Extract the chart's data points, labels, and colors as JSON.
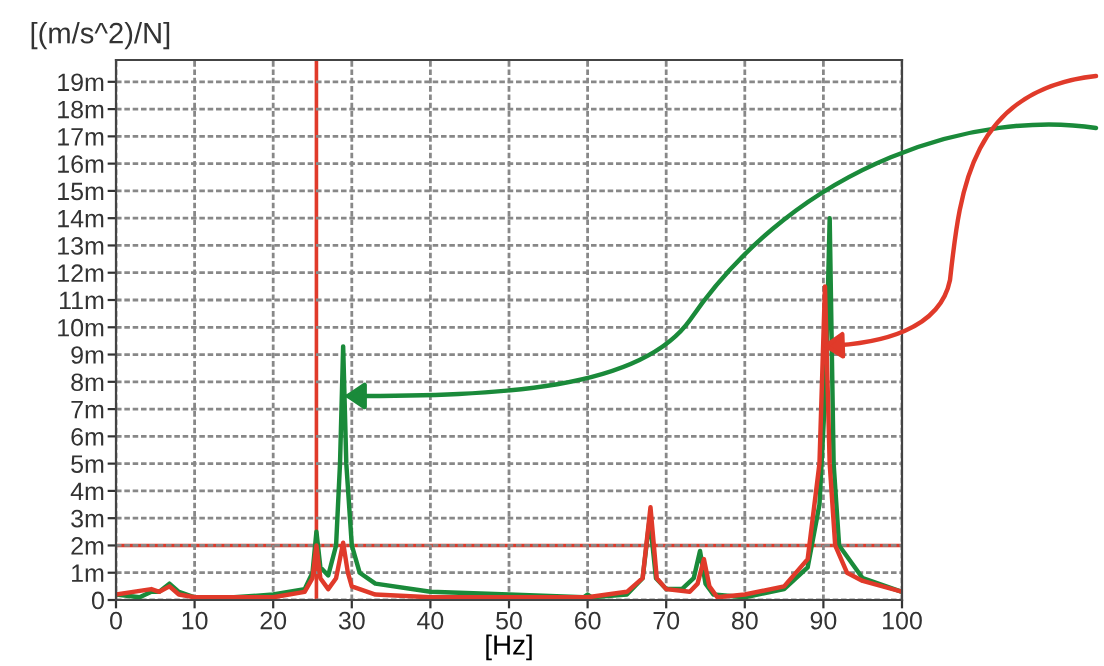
{
  "chart_data": {
    "type": "line",
    "xlabel": "[Hz]",
    "ylabel": "[(m/s^2)/N]",
    "xlim": [
      0,
      100
    ],
    "xticks": [
      0,
      10,
      20,
      30,
      40,
      50,
      60,
      70,
      80,
      90,
      100
    ],
    "ylim": [
      0,
      19.8
    ],
    "yticks": [
      0,
      {
        "value": 1,
        "label": "1m"
      },
      {
        "value": 2,
        "label": "2m"
      },
      {
        "value": 3,
        "label": "3m"
      },
      {
        "value": 4,
        "label": "4m"
      },
      {
        "value": 5,
        "label": "5m"
      },
      {
        "value": 6,
        "label": "6m"
      },
      {
        "value": 7,
        "label": "7m"
      },
      {
        "value": 8,
        "label": "8m"
      },
      {
        "value": 9,
        "label": "9m"
      },
      {
        "value": 10,
        "label": "10m"
      },
      {
        "value": 11,
        "label": "11m"
      },
      {
        "value": 12,
        "label": "12m"
      },
      {
        "value": 13,
        "label": "13m"
      },
      {
        "value": 14,
        "label": "14m"
      },
      {
        "value": 15,
        "label": "15m"
      },
      {
        "value": 16,
        "label": "16m"
      },
      {
        "value": 17,
        "label": "17m"
      },
      {
        "value": 18,
        "label": "18m"
      },
      {
        "value": 19,
        "label": "19m"
      }
    ],
    "grid": true,
    "series": [
      {
        "color": "#1a8a3a",
        "x": [
          0,
          3,
          4.5,
          5.5,
          6.8,
          8,
          10,
          15,
          20,
          24,
          25,
          25.5,
          26,
          27,
          28,
          28.5,
          28.9,
          29.3,
          30,
          31,
          33,
          40,
          50,
          59.5,
          60,
          60.5,
          65,
          67,
          67.9,
          68.7,
          70,
          72,
          73.5,
          74.3,
          75,
          76,
          80,
          85,
          88,
          89.5,
          90.3,
          90.8,
          91.3,
          92,
          95,
          100
        ],
        "values": [
          0.2,
          0.1,
          0.3,
          0.3,
          0.6,
          0.3,
          0.1,
          0.1,
          0.2,
          0.4,
          1.0,
          2.5,
          1.2,
          0.9,
          2.0,
          5.0,
          9.3,
          5.0,
          2.0,
          1.0,
          0.6,
          0.3,
          0.2,
          0.1,
          0.2,
          0.1,
          0.2,
          0.8,
          3.0,
          0.8,
          0.4,
          0.4,
          0.8,
          1.8,
          0.6,
          0.2,
          0.1,
          0.4,
          1.2,
          3.5,
          8.0,
          14.0,
          5.0,
          2.0,
          0.8,
          0.3
        ]
      },
      {
        "color": "#e03a2a",
        "x": [
          0,
          4.5,
          5.5,
          6.8,
          8,
          10,
          20,
          24,
          25,
          25.5,
          26,
          27,
          28,
          28.9,
          29.5,
          30,
          33,
          40,
          60,
          65,
          67,
          68,
          68.8,
          70,
          73,
          74,
          74.8,
          75.5,
          76.5,
          80,
          85,
          88,
          89.5,
          90.2,
          90.8,
          91.5,
          93,
          95,
          100
        ],
        "values": [
          0.2,
          0.4,
          0.3,
          0.5,
          0.2,
          0.1,
          0.1,
          0.3,
          0.8,
          2.0,
          0.8,
          0.4,
          0.8,
          2.1,
          1.0,
          0.5,
          0.2,
          0.1,
          0.1,
          0.3,
          0.8,
          3.4,
          0.8,
          0.4,
          0.3,
          0.6,
          1.5,
          0.5,
          0.1,
          0.2,
          0.5,
          1.5,
          5.0,
          11.5,
          5.0,
          2.0,
          1.0,
          0.7,
          0.3
        ]
      }
    ],
    "ref_lines": [
      {
        "axis": "x",
        "value": 25.5,
        "color": "#e03a2a"
      },
      {
        "axis": "y",
        "value": 2,
        "color": "#e03a2a"
      }
    ]
  }
}
